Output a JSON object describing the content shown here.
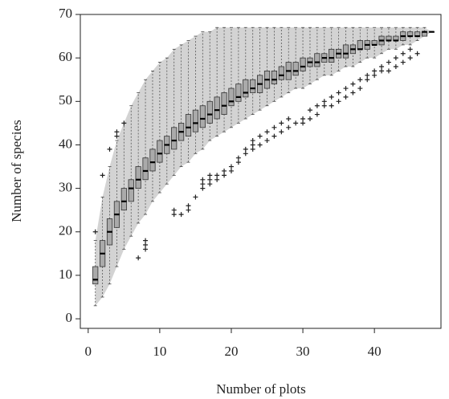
{
  "chart_data": {
    "type": "boxplot",
    "x_label": "Number of plots",
    "y_label": "Number of species",
    "x": [
      1,
      2,
      3,
      4,
      5,
      6,
      7,
      8,
      9,
      10,
      11,
      12,
      13,
      14,
      15,
      16,
      17,
      18,
      19,
      20,
      21,
      22,
      23,
      24,
      25,
      26,
      27,
      28,
      29,
      30,
      31,
      32,
      33,
      34,
      35,
      36,
      37,
      38,
      39,
      40,
      41,
      42,
      43,
      44,
      45,
      46,
      47,
      48
    ],
    "whisker_low": [
      3,
      5,
      8,
      12,
      16,
      19,
      22,
      24,
      27,
      29,
      31,
      33,
      35,
      36,
      38,
      39,
      41,
      42,
      43,
      44,
      45,
      46,
      47,
      48,
      49,
      50,
      51,
      52,
      53,
      53,
      54,
      55,
      56,
      56,
      57,
      58,
      58,
      59,
      60,
      60,
      61,
      62,
      62,
      63,
      63,
      64,
      65,
      66
    ],
    "q1": [
      8,
      12,
      17,
      21,
      25,
      27,
      30,
      32,
      34,
      36,
      38,
      39,
      41,
      42,
      43,
      44,
      45,
      46,
      47,
      49,
      50,
      51,
      52,
      52,
      53,
      54,
      55,
      55,
      56,
      57,
      58,
      58,
      59,
      59,
      60,
      60,
      61,
      62,
      62,
      63,
      63,
      64,
      64,
      64,
      65,
      65,
      65,
      66
    ],
    "median": [
      9,
      15,
      20,
      24,
      27,
      30,
      32,
      34,
      36,
      38,
      40,
      41,
      43,
      44,
      45,
      46,
      47,
      48,
      49,
      50,
      51,
      52,
      53,
      54,
      55,
      55,
      56,
      57,
      57,
      58,
      59,
      59,
      60,
      60,
      61,
      61,
      62,
      62,
      63,
      63,
      64,
      64,
      64,
      65,
      65,
      65,
      66,
      66
    ],
    "q3": [
      12,
      18,
      23,
      27,
      30,
      32,
      35,
      37,
      39,
      41,
      42,
      44,
      45,
      47,
      48,
      49,
      50,
      51,
      52,
      53,
      54,
      55,
      55,
      56,
      57,
      57,
      58,
      59,
      59,
      60,
      60,
      61,
      61,
      62,
      62,
      63,
      63,
      64,
      64,
      64,
      65,
      65,
      65,
      66,
      66,
      66,
      66,
      66
    ],
    "whisker_high": [
      18,
      28,
      35,
      41,
      45,
      49,
      52,
      55,
      57,
      59,
      60,
      62,
      63,
      64,
      65,
      66,
      66,
      67,
      67,
      67,
      67,
      67,
      67,
      67,
      67,
      67,
      67,
      67,
      67,
      67,
      67,
      67,
      67,
      67,
      67,
      67,
      67,
      67,
      67,
      67,
      67,
      67,
      67,
      67,
      67,
      67,
      67,
      66
    ],
    "outliers": [
      [
        20
      ],
      [
        33
      ],
      [
        39
      ],
      [
        42,
        43
      ],
      [
        45
      ],
      [],
      [
        14
      ],
      [
        16,
        17,
        18
      ],
      [],
      [],
      [],
      [
        24,
        25
      ],
      [
        24
      ],
      [
        25,
        26
      ],
      [
        28
      ],
      [
        30,
        31,
        32
      ],
      [
        31,
        32,
        33
      ],
      [
        32,
        33
      ],
      [
        33,
        34
      ],
      [
        34,
        35
      ],
      [
        36,
        37
      ],
      [
        38,
        39
      ],
      [
        39,
        40,
        41
      ],
      [
        40,
        42
      ],
      [
        41,
        43
      ],
      [
        42,
        44
      ],
      [
        43,
        45
      ],
      [
        44,
        46
      ],
      [
        45
      ],
      [
        45,
        46
      ],
      [
        46,
        48
      ],
      [
        47,
        49
      ],
      [
        49,
        50
      ],
      [
        49,
        51
      ],
      [
        50,
        52
      ],
      [
        51,
        53
      ],
      [
        52,
        54
      ],
      [
        53,
        55
      ],
      [
        55,
        56
      ],
      [
        56,
        57
      ],
      [
        57,
        58
      ],
      [
        57,
        59
      ],
      [
        58,
        60
      ],
      [
        59,
        61
      ],
      [
        60,
        62
      ],
      [
        61
      ],
      [],
      []
    ],
    "box_color": "#aaaaaa",
    "band_color": "#d3d3d3",
    "xlim": [
      -1.1,
      49.3
    ],
    "ylim": [
      -2.2,
      70
    ],
    "xticks": [
      0,
      10,
      20,
      30,
      40
    ],
    "yticks": [
      0,
      10,
      20,
      30,
      40,
      50,
      60,
      70
    ]
  }
}
